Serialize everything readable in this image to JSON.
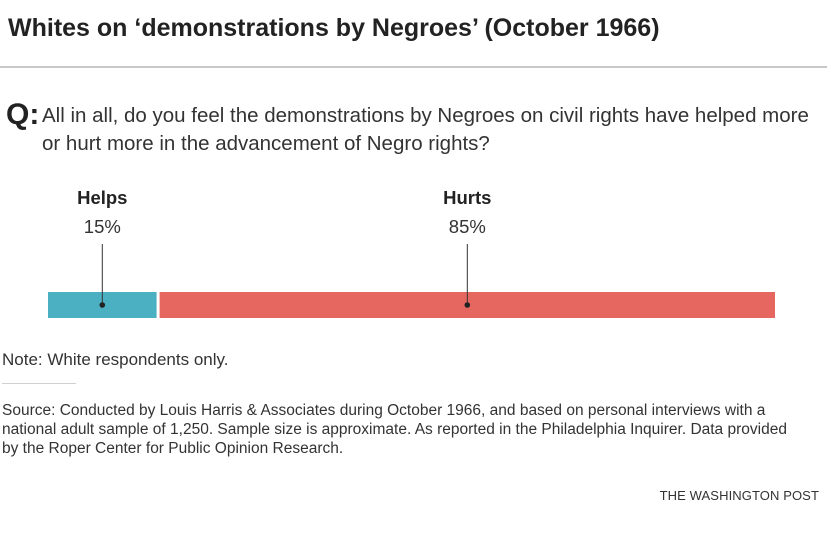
{
  "header": {
    "title": "Whites on ‘demonstrations by Negroes’ (October 1966)"
  },
  "question": {
    "marker": "Q:",
    "text": "All in all, do you feel the demonstrations by Negroes on civil rights have helped more or hurt more in the advancement of Negro rights?"
  },
  "chart_data": {
    "type": "bar",
    "orientation": "horizontal-stacked",
    "categories": [
      "Helps",
      "Hurts"
    ],
    "values": [
      15,
      85
    ],
    "value_labels": [
      "15%",
      "85%"
    ],
    "colors": [
      "#4bb1c2",
      "#e5675f"
    ],
    "xlim": [
      0,
      100
    ],
    "grid": false
  },
  "footer": {
    "note": "Note: White respondents only.",
    "source": "Source: Conducted by Louis Harris & Associates during October 1966, and based on personal interviews with a national adult sample of 1,250. Sample size is approximate. As reported in the Philadelphia Inquirer. Data provided by the Roper Center for Public Opinion Research.",
    "credit": "THE WASHINGTON POST"
  }
}
